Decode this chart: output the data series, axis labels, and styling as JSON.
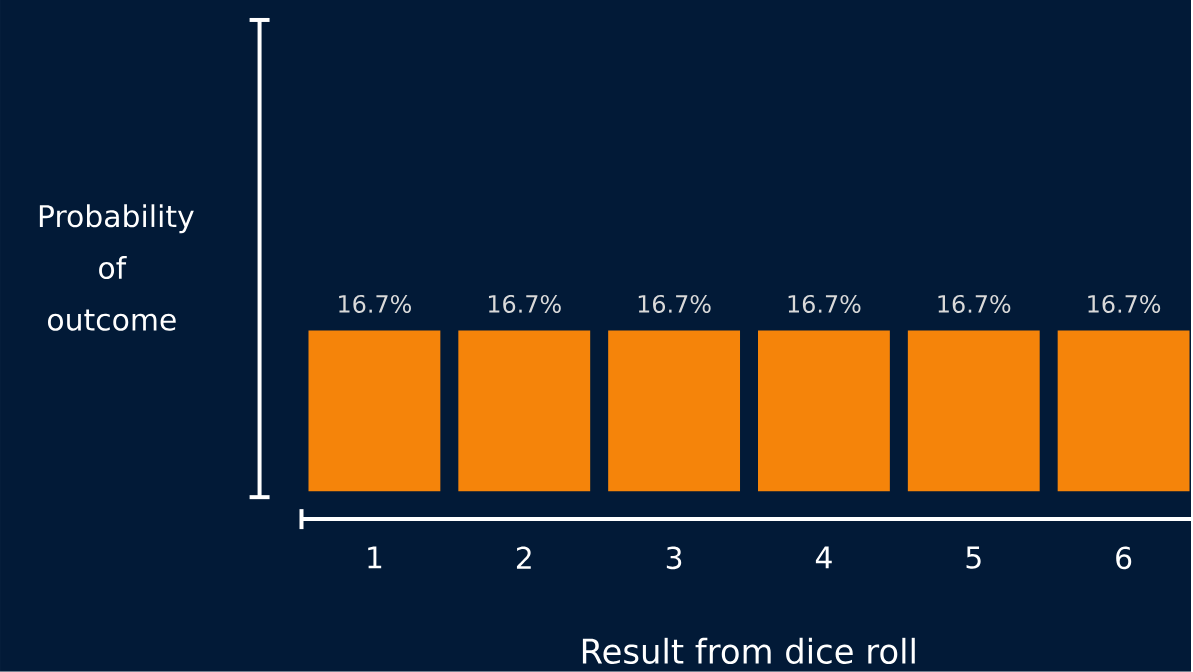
{
  "chart_data": {
    "type": "bar",
    "xlabel": "Result from dice roll",
    "ylabel": "Probability of outcome",
    "categories": [
      "1",
      "2",
      "3",
      "4",
      "5",
      "6"
    ],
    "values": [
      16.7,
      16.7,
      16.7,
      16.7,
      16.7,
      16.7
    ],
    "value_labels": [
      "16.7%",
      "16.7%",
      "16.7%",
      "16.7%",
      "16.7%",
      "16.7%"
    ],
    "color": "#f5840a"
  }
}
